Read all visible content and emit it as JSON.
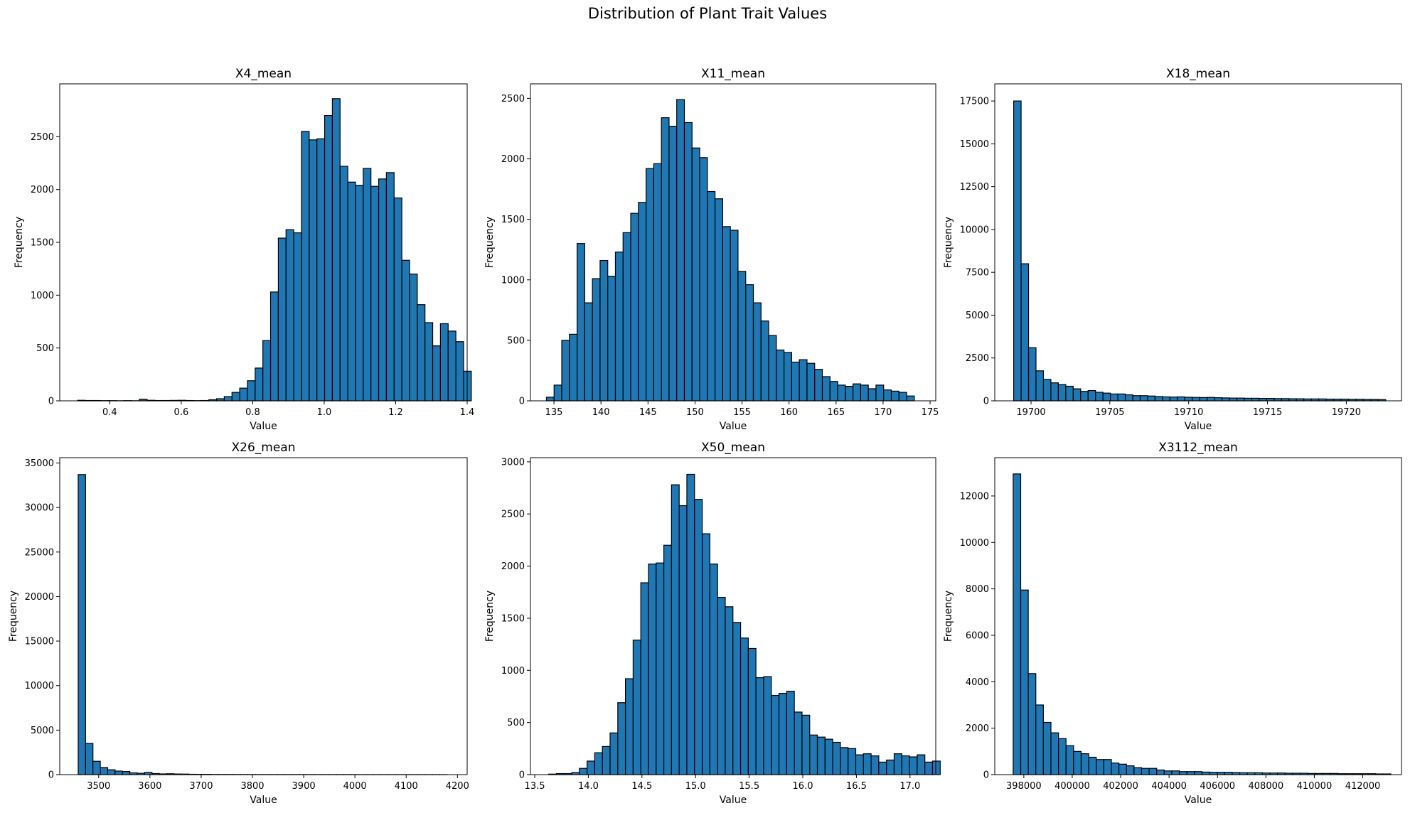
{
  "figure": {
    "suptitle": "Distribution of Plant Trait Values"
  },
  "chart_data": [
    {
      "type": "bar",
      "title": "X4_mean",
      "xlabel": "Value",
      "ylabel": "Frequency",
      "xlim": [
        0.26,
        1.4
      ],
      "ylim": [
        0,
        3000
      ],
      "xticks": [
        0.4,
        0.6,
        0.8,
        1.0,
        1.2,
        1.4
      ],
      "xtick_labels": [
        "0.4",
        "0.6",
        "0.8",
        "1.0",
        "1.2",
        "1.4"
      ],
      "yticks": [
        0,
        500,
        1000,
        1500,
        2000,
        2500
      ],
      "ytick_labels": [
        "0",
        "500",
        "1000",
        "1500",
        "2000",
        "2500"
      ],
      "bin_start": 0.31,
      "bin_width": 0.0216,
      "values": [
        5,
        3,
        3,
        2,
        2,
        1,
        2,
        1,
        15,
        5,
        3,
        3,
        4,
        5,
        3,
        2,
        3,
        10,
        20,
        40,
        80,
        120,
        190,
        310,
        570,
        1030,
        1540,
        1620,
        1590,
        2550,
        2470,
        2480,
        2700,
        2860,
        2220,
        2070,
        2040,
        2200,
        2030,
        2100,
        2160,
        1920,
        1330,
        1200,
        910,
        740,
        520,
        730,
        660,
        560,
        280
      ]
    },
    {
      "type": "bar",
      "title": "X11_mean",
      "xlabel": "Value",
      "ylabel": "Frequency",
      "xlim": [
        132.5,
        175.6
      ],
      "ylim": [
        0,
        2620
      ],
      "xticks": [
        135,
        140,
        145,
        150,
        155,
        160,
        165,
        170,
        175
      ],
      "xtick_labels": [
        "135",
        "140",
        "145",
        "150",
        "155",
        "160",
        "165",
        "170",
        "175"
      ],
      "yticks": [
        0,
        500,
        1000,
        1500,
        2000,
        2500
      ],
      "ytick_labels": [
        "0",
        "500",
        "1000",
        "1500",
        "2000",
        "2500"
      ],
      "bin_start": 134.2,
      "bin_width": 0.815,
      "values": [
        30,
        130,
        500,
        550,
        1300,
        810,
        1010,
        1160,
        1030,
        1230,
        1390,
        1550,
        1640,
        1920,
        1960,
        2340,
        2270,
        2490,
        2300,
        2090,
        2010,
        1730,
        1670,
        1440,
        1410,
        1070,
        960,
        810,
        660,
        540,
        420,
        400,
        320,
        340,
        310,
        260,
        200,
        160,
        130,
        120,
        140,
        130,
        100,
        130,
        90,
        80,
        70,
        40
      ]
    },
    {
      "type": "bar",
      "title": "X18_mean",
      "xlabel": "Value",
      "ylabel": "Frequency",
      "xlim": [
        19697.7,
        19723.5
      ],
      "ylim": [
        0,
        18500
      ],
      "xticks": [
        19700,
        19705,
        19710,
        19715,
        19720
      ],
      "xtick_labels": [
        "19700",
        "19705",
        "19710",
        "19715",
        "19720"
      ],
      "yticks": [
        0,
        2500,
        5000,
        7500,
        10000,
        12500,
        15000,
        17500
      ],
      "ytick_labels": [
        "0",
        "2500",
        "5000",
        "7500",
        "10000",
        "12500",
        "15000",
        "17500"
      ],
      "bin_start": 19698.9,
      "bin_width": 0.472,
      "values": [
        17500,
        8000,
        3100,
        1750,
        1250,
        1050,
        950,
        850,
        700,
        550,
        600,
        500,
        450,
        400,
        400,
        350,
        300,
        300,
        280,
        250,
        230,
        220,
        230,
        210,
        200,
        190,
        200,
        180,
        170,
        160,
        160,
        150,
        150,
        140,
        140,
        130,
        130,
        120,
        120,
        110,
        110,
        110,
        100,
        100,
        100,
        90,
        90,
        80,
        80,
        70
      ]
    },
    {
      "type": "bar",
      "title": "X26_mean",
      "xlabel": "Value",
      "ylabel": "Frequency",
      "xlim": [
        3424,
        4219
      ],
      "ylim": [
        0,
        35600
      ],
      "xticks": [
        3500,
        3600,
        3700,
        3800,
        3900,
        4000,
        4100,
        4200
      ],
      "xtick_labels": [
        "3500",
        "3600",
        "3700",
        "3800",
        "3900",
        "4000",
        "4100",
        "4200"
      ],
      "yticks": [
        0,
        5000,
        10000,
        15000,
        20000,
        25000,
        30000,
        35000
      ],
      "ytick_labels": [
        "0",
        "5000",
        "10000",
        "15000",
        "20000",
        "25000",
        "30000",
        "35000"
      ],
      "bin_start": 3460,
      "bin_width": 14.4,
      "values": [
        33700,
        3500,
        1500,
        800,
        550,
        400,
        350,
        200,
        150,
        250,
        120,
        80,
        100,
        70,
        60,
        40,
        30,
        30,
        20,
        20,
        20,
        15,
        15,
        10,
        10,
        10,
        10,
        10,
        10,
        10,
        10,
        10,
        8,
        8,
        8,
        10,
        10,
        8,
        5,
        5,
        5,
        5,
        5,
        5,
        5,
        5,
        5,
        5,
        5,
        5
      ]
    },
    {
      "type": "bar",
      "title": "X50_mean",
      "xlabel": "Value",
      "ylabel": "Frequency",
      "xlim": [
        13.46,
        17.24
      ],
      "ylim": [
        0,
        3040
      ],
      "xticks": [
        13.5,
        14.0,
        14.5,
        15.0,
        15.5,
        16.0,
        16.5,
        17.0
      ],
      "xtick_labels": [
        "13.5",
        "14.0",
        "14.5",
        "15.0",
        "15.5",
        "16.0",
        "16.5",
        "17.0"
      ],
      "yticks": [
        0,
        500,
        1000,
        1500,
        2000,
        2500,
        3000
      ],
      "ytick_labels": [
        "0",
        "500",
        "1000",
        "1500",
        "2000",
        "2500",
        "3000"
      ],
      "bin_start": 13.63,
      "bin_width": 0.0716,
      "values": [
        5,
        10,
        10,
        20,
        60,
        130,
        210,
        270,
        400,
        690,
        920,
        1290,
        1840,
        2020,
        2030,
        2200,
        2780,
        2580,
        2880,
        2640,
        2310,
        2020,
        1700,
        1610,
        1460,
        1310,
        1210,
        930,
        940,
        760,
        780,
        800,
        600,
        570,
        380,
        360,
        340,
        310,
        260,
        250,
        190,
        200,
        180,
        120,
        140,
        200,
        180,
        170,
        190,
        120,
        130
      ]
    },
    {
      "type": "bar",
      "title": "X3112_mean",
      "xlabel": "Value",
      "ylabel": "Frequency",
      "xlim": [
        396800,
        413600
      ],
      "ylim": [
        0,
        13650
      ],
      "xticks": [
        398000,
        400000,
        402000,
        404000,
        406000,
        408000,
        410000,
        412000
      ],
      "xtick_labels": [
        "398000",
        "400000",
        "402000",
        "404000",
        "406000",
        "408000",
        "410000",
        "412000"
      ],
      "yticks": [
        0,
        2000,
        4000,
        6000,
        8000,
        10000,
        12000
      ],
      "ytick_labels": [
        "0",
        "2000",
        "4000",
        "6000",
        "8000",
        "10000",
        "12000"
      ],
      "bin_start": 397560,
      "bin_width": 312,
      "values": [
        12950,
        7950,
        4350,
        3000,
        2250,
        1800,
        1550,
        1250,
        1000,
        900,
        750,
        650,
        650,
        500,
        450,
        380,
        300,
        270,
        270,
        200,
        160,
        160,
        130,
        130,
        130,
        110,
        100,
        100,
        100,
        90,
        80,
        80,
        80,
        70,
        70,
        70,
        60,
        60,
        60,
        50,
        50,
        50,
        50,
        40,
        40,
        40,
        40,
        40,
        30,
        30
      ]
    }
  ]
}
